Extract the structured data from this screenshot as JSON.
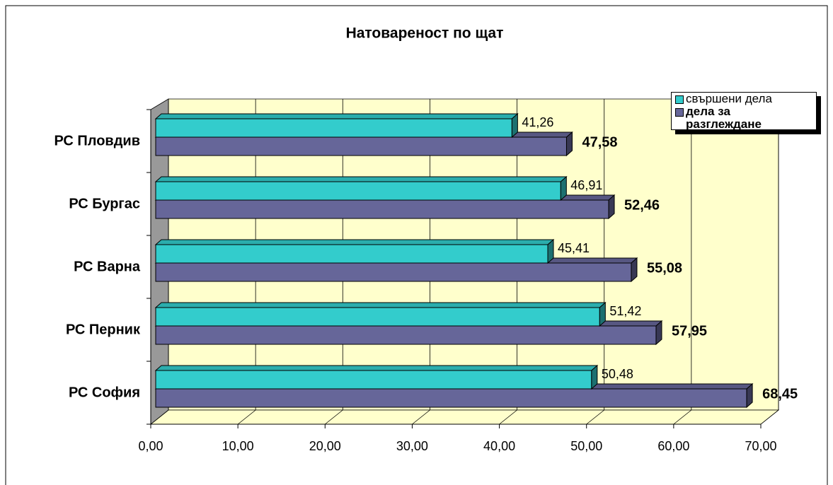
{
  "chart_data": {
    "type": "bar",
    "orientation": "horizontal",
    "title": "Натовареност по щат",
    "categories": [
      "РС Пловдив",
      "РС Бургас",
      "РС Варна",
      "РС Перник",
      "РС София"
    ],
    "series": [
      {
        "name": "свършени дела",
        "color": "#33cccc",
        "values": [
          41.26,
          46.91,
          45.41,
          51.42,
          50.48
        ],
        "value_labels": [
          "41,26",
          "46,91",
          "45,41",
          "51,42",
          "50,48"
        ]
      },
      {
        "name": "дела за разглеждане",
        "color": "#666699",
        "values": [
          47.58,
          52.46,
          55.08,
          57.95,
          68.45
        ],
        "value_labels": [
          "47,58",
          "52,46",
          "55,08",
          "57,95",
          "68,45"
        ]
      }
    ],
    "xlim": [
      0,
      70
    ],
    "xticks": [
      {
        "value": 0,
        "label": "0,00"
      },
      {
        "value": 10,
        "label": "10,00"
      },
      {
        "value": 20,
        "label": "20,00"
      },
      {
        "value": 30,
        "label": "30,00"
      },
      {
        "value": 40,
        "label": "40,00"
      },
      {
        "value": 50,
        "label": "50,00"
      },
      {
        "value": 60,
        "label": "60,00"
      },
      {
        "value": 70,
        "label": "70,00"
      }
    ],
    "grid": true,
    "legend": "top-right"
  }
}
